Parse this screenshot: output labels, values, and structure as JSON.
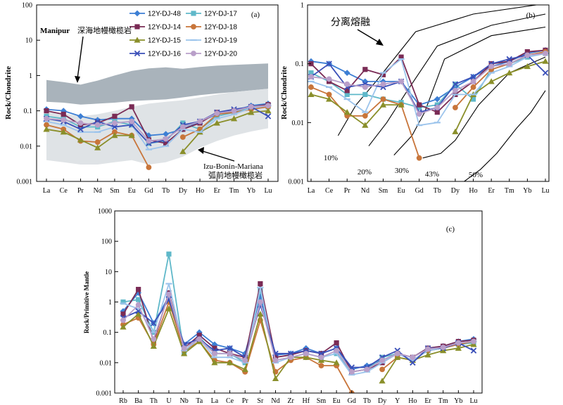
{
  "chart_data": [
    {
      "id": "a",
      "type": "line",
      "panel_label": "(a)",
      "ylabel": "Rock/Chondrite",
      "yscale": "log",
      "ylim": [
        0.001,
        100
      ],
      "yticks": [
        "0.001",
        "0.01",
        "0.1",
        "1",
        "10",
        "100"
      ],
      "categories": [
        "La",
        "Ce",
        "Pr",
        "Nd",
        "Sm",
        "Eu",
        "Gd",
        "Tb",
        "Dy",
        "Ho",
        "Er",
        "Tm",
        "Yb",
        "Lu"
      ],
      "legend": "top",
      "bands": [
        {
          "name": "Manipur",
          "upper": [
            0.75,
            0.65,
            0.55,
            0.72,
            1.0,
            1.35,
            1.6,
            1.7,
            1.55,
            1.75,
            1.9,
            2.0,
            2.1,
            2.2
          ],
          "lower": [
            0.18,
            0.17,
            0.15,
            0.16,
            0.17,
            0.19,
            0.2,
            0.21,
            0.24,
            0.28,
            0.31,
            0.34,
            0.38,
            0.42
          ],
          "color": "#a9b3bb"
        },
        {
          "name": "Izu-Bonin-Mariana",
          "upper": [
            0.09,
            0.085,
            0.07,
            0.08,
            0.1,
            0.13,
            0.16,
            0.18,
            0.2,
            0.24,
            0.29,
            0.34,
            0.38,
            0.42
          ],
          "lower": [
            0.004,
            0.0035,
            0.003,
            0.003,
            0.0035,
            0.004,
            0.003,
            0.0035,
            0.005,
            0.009,
            0.014,
            0.02,
            0.026,
            0.032
          ],
          "color": "#dfe3e6"
        }
      ],
      "annotations": {
        "manipur_name": "Manipur",
        "manipur_desc": "深海地幔橄榄岩",
        "ibm_name": "Izu-Bonin-Mariana",
        "ibm_desc": "弧前地幔橄榄岩"
      },
      "series": [
        {
          "name": "12Y-DJ-48",
          "color": "#3d7fd4",
          "marker": "diamond",
          "values": [
            0.11,
            0.1,
            0.07,
            0.055,
            0.06,
            0.06,
            0.02,
            0.022,
            0.03,
            0.05,
            0.08,
            0.1,
            0.14,
            0.16
          ]
        },
        {
          "name": "12Y-DJ-17",
          "color": "#5fb8c9",
          "marker": "square",
          "values": [
            0.07,
            0.06,
            0.035,
            0.035,
            0.05,
            0.04,
            0.012,
            0.014,
            0.045,
            0.03,
            0.07,
            0.09,
            0.12,
            0.13
          ]
        },
        {
          "name": "12Y-DJ-14",
          "color": "#7a2b55",
          "marker": "square",
          "values": [
            0.1,
            0.08,
            0.04,
            0.045,
            0.07,
            0.13,
            0.015,
            0.012,
            0.03,
            0.045,
            0.09,
            0.1,
            0.13,
            0.15
          ]
        },
        {
          "name": "12Y-DJ-18",
          "color": "#c8753a",
          "marker": "circle",
          "values": [
            0.04,
            0.03,
            0.014,
            0.013,
            0.025,
            0.02,
            0.0025,
            null,
            0.018,
            0.03,
            0.08,
            0.09,
            0.11,
            0.13
          ]
        },
        {
          "name": "12Y-DJ-15",
          "color": "#8a8f2a",
          "marker": "triangle",
          "values": [
            0.03,
            0.025,
            0.015,
            0.009,
            0.02,
            0.02,
            null,
            null,
            0.007,
            0.025,
            0.045,
            0.06,
            0.09,
            0.1
          ]
        },
        {
          "name": "12Y-DJ-19",
          "color": "#9cc4ec",
          "marker": "dash",
          "values": [
            0.05,
            0.04,
            0.025,
            0.025,
            0.035,
            0.04,
            0.008,
            0.01,
            0.03,
            0.025,
            0.06,
            0.08,
            0.12,
            0.14
          ]
        },
        {
          "name": "12Y-DJ-16",
          "color": "#3a4fb8",
          "marker": "x",
          "values": [
            0.06,
            0.05,
            0.03,
            0.05,
            0.035,
            0.04,
            0.012,
            0.015,
            0.04,
            0.05,
            0.09,
            0.11,
            0.13,
            0.07
          ]
        },
        {
          "name": "12Y-DJ-20",
          "color": "#b99fc9",
          "marker": "circle",
          "values": [
            0.06,
            0.055,
            0.045,
            0.04,
            0.045,
            0.05,
            0.014,
            0.016,
            0.035,
            0.05,
            0.085,
            0.1,
            0.13,
            0.14
          ]
        }
      ]
    },
    {
      "id": "b",
      "type": "line",
      "panel_label": "(b)",
      "ylabel": "Rock/Chondrite",
      "yscale": "log",
      "ylim": [
        0.001,
        1
      ],
      "yticks": [
        "0.001",
        "0.01",
        "0.1",
        "1"
      ],
      "categories": [
        "La",
        "Ce",
        "Pr",
        "Nd",
        "Sm",
        "Eu",
        "Gd",
        "Tb",
        "Dy",
        "Ho",
        "Er",
        "Tm",
        "Yb",
        "Lu"
      ],
      "title_annotation": "分离熔融",
      "melt_labels": [
        "10%",
        "20%",
        "30%",
        "43%",
        "50%"
      ],
      "melting_curves": [
        {
          "label": "10%",
          "x": [
            1.5,
            2.5,
            3.6,
            5.8,
            9,
            12.5
          ],
          "y": [
            0.006,
            0.02,
            0.05,
            0.35,
            0.7,
            1.0
          ]
        },
        {
          "label": "20%",
          "x": [
            3.2,
            4.2,
            5.2,
            7.0,
            10,
            13.0
          ],
          "y": [
            0.004,
            0.01,
            0.03,
            0.2,
            0.45,
            0.7
          ]
        },
        {
          "label": "30%",
          "x": [
            4.6,
            5.6,
            6.3,
            7.4,
            10,
            13.0
          ],
          "y": [
            0.0028,
            0.006,
            0.015,
            0.12,
            0.3,
            0.42
          ]
        },
        {
          "label": "43%",
          "x": [
            6.2,
            7.2,
            8.0,
            9.3,
            11,
            13.0
          ],
          "y": [
            0.0025,
            0.003,
            0.005,
            0.02,
            0.07,
            0.13
          ]
        },
        {
          "label": "50%",
          "x": [
            8.5,
            9.4,
            10.3,
            11.4,
            12.2,
            13.0
          ],
          "y": [
            0.001,
            0.0016,
            0.003,
            0.008,
            0.015,
            0.035
          ]
        }
      ],
      "series": [
        {
          "name": "12Y-DJ-48",
          "color": "#3d7fd4",
          "marker": "diamond",
          "values": [
            0.11,
            0.1,
            0.07,
            0.05,
            0.05,
            0.05,
            0.02,
            0.025,
            0.04,
            0.06,
            0.09,
            0.11,
            0.15,
            0.17
          ]
        },
        {
          "name": "12Y-DJ-17",
          "color": "#5fb8c9",
          "marker": "square",
          "values": [
            0.07,
            0.05,
            0.03,
            0.03,
            0.025,
            0.022,
            0.018,
            0.02,
            0.045,
            0.025,
            0.08,
            0.1,
            0.13,
            0.15
          ]
        },
        {
          "name": "12Y-DJ-14",
          "color": "#7a2b55",
          "marker": "square",
          "values": [
            0.1,
            0.05,
            0.035,
            0.08,
            0.065,
            0.13,
            0.02,
            0.015,
            0.03,
            0.05,
            0.1,
            0.11,
            0.16,
            0.17
          ]
        },
        {
          "name": "12Y-DJ-18",
          "color": "#c8753a",
          "marker": "circle",
          "values": [
            0.04,
            0.03,
            0.013,
            0.013,
            0.025,
            0.02,
            0.0025,
            null,
            0.018,
            0.04,
            0.08,
            0.1,
            0.14,
            0.16
          ]
        },
        {
          "name": "12Y-DJ-15",
          "color": "#8a8f2a",
          "marker": "triangle",
          "values": [
            0.03,
            0.025,
            0.015,
            0.009,
            0.02,
            0.02,
            null,
            null,
            0.007,
            0.03,
            0.05,
            0.07,
            0.09,
            0.11
          ]
        },
        {
          "name": "12Y-DJ-19",
          "color": "#9cc4ec",
          "marker": "dash",
          "values": [
            0.05,
            0.04,
            0.025,
            0.015,
            0.07,
            0.12,
            0.009,
            0.01,
            0.03,
            0.03,
            0.07,
            0.09,
            0.13,
            0.15
          ]
        },
        {
          "name": "12Y-DJ-16",
          "color": "#3a4fb8",
          "marker": "x",
          "values": [
            0.06,
            0.1,
            0.04,
            0.045,
            0.04,
            0.05,
            0.015,
            0.018,
            0.045,
            0.06,
            0.1,
            0.12,
            0.14,
            0.07
          ]
        },
        {
          "name": "12Y-DJ-20",
          "color": "#b99fc9",
          "marker": "circle",
          "values": [
            0.06,
            0.055,
            0.045,
            0.04,
            0.045,
            0.05,
            0.014,
            0.018,
            0.035,
            0.05,
            0.09,
            0.1,
            0.14,
            0.15
          ]
        }
      ]
    },
    {
      "id": "c",
      "type": "line",
      "panel_label": "(c)",
      "ylabel": "Rock/Primitive Mantle",
      "yscale": "log",
      "ylim": [
        0.001,
        1000
      ],
      "yticks": [
        "0.001",
        "0.01",
        "0.1",
        "1",
        "10",
        "100",
        "1000"
      ],
      "categories": [
        "Rb",
        "Ba",
        "Th",
        "U",
        "Nb",
        "Ta",
        "La",
        "Ce",
        "Pr",
        "Sr",
        "Nd",
        "Zr",
        "Hf",
        "Sm",
        "Eu",
        "Gd",
        "Tb",
        "Dy",
        "Y",
        "Ho",
        "Er",
        "Tm",
        "Yb",
        "Lu"
      ],
      "series": [
        {
          "name": "12Y-DJ-48",
          "color": "#3d7fd4",
          "marker": "diamond",
          "values": [
            0.5,
            2.0,
            0.2,
            1.5,
            0.04,
            0.1,
            0.04,
            0.03,
            0.02,
            1.5,
            0.018,
            0.02,
            0.03,
            0.02,
            0.03,
            0.006,
            0.008,
            0.012,
            0.02,
            0.015,
            0.03,
            0.035,
            0.05,
            0.06
          ]
        },
        {
          "name": "12Y-DJ-17",
          "color": "#5fb8c9",
          "marker": "square",
          "values": [
            1.0,
            1.2,
            0.1,
            38,
            0.02,
            0.07,
            0.02,
            0.02,
            0.01,
            2.5,
            0.012,
            0.015,
            0.02,
            0.015,
            0.02,
            0.005,
            0.006,
            0.015,
            0.02,
            0.012,
            0.025,
            0.03,
            0.04,
            0.045
          ]
        },
        {
          "name": "12Y-DJ-14",
          "color": "#7a2b55",
          "marker": "square",
          "values": [
            0.4,
            2.6,
            0.05,
            2.0,
            0.03,
            0.08,
            0.03,
            0.02,
            0.015,
            4.0,
            0.015,
            0.018,
            0.025,
            0.02,
            0.045,
            0.005,
            0.006,
            0.01,
            0.02,
            0.015,
            0.03,
            0.035,
            0.05,
            0.055
          ]
        },
        {
          "name": "12Y-DJ-18",
          "color": "#c8753a",
          "marker": "circle",
          "values": [
            0.18,
            0.3,
            0.04,
            1.0,
            0.025,
            0.05,
            0.012,
            0.01,
            0.005,
            0.25,
            0.005,
            0.012,
            0.015,
            0.008,
            0.008,
            0.001,
            null,
            0.006,
            0.015,
            0.012,
            0.025,
            0.03,
            0.04,
            0.05
          ]
        },
        {
          "name": "12Y-DJ-15",
          "color": "#8a8f2a",
          "marker": "triangle",
          "values": [
            0.15,
            0.4,
            0.035,
            0.6,
            0.02,
            0.05,
            0.01,
            0.01,
            0.006,
            0.4,
            0.003,
            0.015,
            0.015,
            0.012,
            0.01,
            null,
            null,
            0.0025,
            0.015,
            0.012,
            0.018,
            0.025,
            0.03,
            0.04
          ]
        },
        {
          "name": "12Y-DJ-19",
          "color": "#9cc4ec",
          "marker": "dash",
          "values": [
            0.9,
            0.6,
            0.1,
            4.0,
            0.025,
            0.06,
            0.015,
            0.015,
            0.01,
            3.0,
            0.01,
            0.015,
            0.02,
            0.015,
            0.02,
            0.004,
            0.005,
            0.01,
            0.02,
            0.012,
            0.025,
            0.03,
            0.045,
            0.05
          ]
        },
        {
          "name": "12Y-DJ-16",
          "color": "#3a4fb8",
          "marker": "x",
          "values": [
            0.3,
            0.5,
            0.2,
            1.2,
            0.04,
            0.06,
            0.025,
            0.03,
            0.015,
            0.8,
            0.02,
            0.02,
            0.025,
            0.02,
            0.03,
            0.007,
            0.007,
            0.015,
            0.025,
            0.01,
            0.03,
            0.03,
            0.045,
            0.025
          ]
        },
        {
          "name": "12Y-DJ-20",
          "color": "#b99fc9",
          "marker": "circle",
          "values": [
            0.25,
            0.8,
            0.06,
            1.8,
            0.03,
            0.06,
            0.02,
            0.02,
            0.012,
            1.0,
            0.012,
            0.015,
            0.02,
            0.015,
            0.025,
            0.005,
            0.006,
            0.012,
            0.02,
            0.015,
            0.028,
            0.032,
            0.045,
            0.05
          ]
        }
      ]
    }
  ]
}
